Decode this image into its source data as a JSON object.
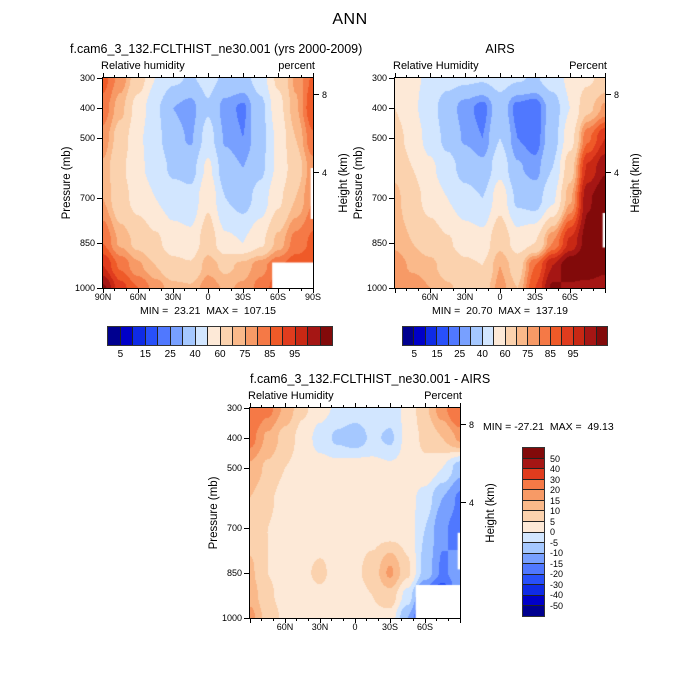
{
  "title": "ANN",
  "palettes": {
    "rh": {
      "levels": [
        5,
        10,
        15,
        20,
        25,
        30,
        40,
        50,
        60,
        70,
        75,
        80,
        85,
        90,
        95,
        100,
        105
      ],
      "colors": [
        "#00008F",
        "#0000C8",
        "#0F2BE6",
        "#2850FA",
        "#5078FF",
        "#78A0FF",
        "#A5C8FF",
        "#D2E6FF",
        "#FDE9D7",
        "#FBD2AE",
        "#FAB98A",
        "#F79A66",
        "#F57946",
        "#EF5A28",
        "#E03C1E",
        "#C82814",
        "#A51614",
        "#820A0A"
      ]
    },
    "diff": {
      "levels": [
        -50,
        -40,
        -30,
        -20,
        -15,
        -10,
        -5,
        0,
        5,
        10,
        15,
        20,
        30,
        40,
        50
      ],
      "colors": [
        "#00008F",
        "#0000C8",
        "#0F2BE6",
        "#2850FA",
        "#5078FF",
        "#78A0FF",
        "#A5C8FF",
        "#D2E6FF",
        "#FDE9D7",
        "#FBD2AE",
        "#FAB98A",
        "#F79A66",
        "#F57946",
        "#E03C1E",
        "#A51614",
        "#820A0A"
      ]
    }
  },
  "colorbars": {
    "rh_labels": [
      "5",
      "15",
      "25",
      "40",
      "60",
      "75",
      "85",
      "95"
    ],
    "diff_labels_top_to_bottom": [
      "50",
      "40",
      "30",
      "20",
      "15",
      "10",
      "5",
      "0",
      "-5",
      "-10",
      "-15",
      "-20",
      "-30",
      "-40",
      "-50"
    ]
  },
  "panels": [
    {
      "title": "f.cam6_3_132.FCLTHIST_ne30.001 (yrs 2000-2009)",
      "field_label": "Relative humidity",
      "units_label": "percent",
      "y_axis_label": "Pressure (mb)",
      "y2_axis_label": "Height (km)",
      "minmax": "MIN =  23.21  MAX =  107.15",
      "x_ticks": [
        {
          "lat": 90,
          "label": "90N"
        },
        {
          "lat": 60,
          "label": "60N"
        },
        {
          "lat": 30,
          "label": "30N"
        },
        {
          "lat": 0,
          "label": "0"
        },
        {
          "lat": -30,
          "label": "30S"
        },
        {
          "lat": -60,
          "label": "60S"
        },
        {
          "lat": -90,
          "label": "90S"
        }
      ],
      "y_ticks": [
        300,
        400,
        500,
        700,
        850,
        1000
      ],
      "y2_ticks": [
        {
          "label": "8",
          "p": 356
        },
        {
          "label": "4",
          "p": 616
        }
      ]
    },
    {
      "title": "AIRS",
      "field_label": "Relative Humidity",
      "units_label": "Percent",
      "y_axis_label": "Pressure (mb)",
      "y2_axis_label": "Height (km)",
      "minmax": "MIN =  20.70  MAX =  137.19",
      "x_ticks": [
        {
          "lat": 60,
          "label": "60N"
        },
        {
          "lat": 30,
          "label": "30N"
        },
        {
          "lat": 0,
          "label": "0"
        },
        {
          "lat": -30,
          "label": "30S"
        },
        {
          "lat": -60,
          "label": "60S"
        }
      ],
      "y_ticks": [
        300,
        400,
        500,
        700,
        850,
        1000
      ],
      "y2_ticks": [
        {
          "label": "8",
          "p": 356
        },
        {
          "label": "4",
          "p": 616
        }
      ]
    },
    {
      "title": "f.cam6_3_132.FCLTHIST_ne30.001 - AIRS",
      "field_label": "Relative Humidity",
      "units_label": "Percent",
      "y_axis_label": "Pressure (mb)",
      "y2_axis_label": "Height (km)",
      "minmax": "MIN = -27.21  MAX =  49.13",
      "x_ticks": [
        {
          "lat": 60,
          "label": "60N"
        },
        {
          "lat": 30,
          "label": "30N"
        },
        {
          "lat": 0,
          "label": "0"
        },
        {
          "lat": -30,
          "label": "30S"
        },
        {
          "lat": -60,
          "label": "60S"
        }
      ],
      "y_ticks": [
        300,
        400,
        500,
        700,
        850,
        1000
      ],
      "y2_ticks": [
        {
          "label": "8",
          "p": 356
        },
        {
          "label": "4",
          "p": 616
        }
      ]
    }
  ],
  "chart_data": [
    {
      "id": "model_rh",
      "type": "heatmap",
      "title": "f.cam6_3_132.FCLTHIST_ne30.001 (yrs 2000-2009)",
      "units": "percent",
      "palette": "rh",
      "contour_levels": [
        5,
        10,
        15,
        20,
        25,
        30,
        40,
        50,
        60,
        70,
        75,
        80,
        85,
        90,
        95,
        100,
        105
      ],
      "x_lat_deg": [
        90,
        75,
        60,
        45,
        30,
        15,
        0,
        -15,
        -30,
        -45,
        -60,
        -75,
        -90
      ],
      "y_pressure_mb": [
        300,
        400,
        500,
        600,
        700,
        850,
        925,
        1000
      ],
      "values": [
        [
          87,
          78,
          65,
          50,
          42,
          39,
          43,
          38,
          36,
          45,
          62,
          76,
          86
        ],
        [
          83,
          72,
          56,
          42,
          30,
          27,
          39,
          27,
          24,
          37,
          56,
          74,
          90
        ],
        [
          78,
          66,
          52,
          43,
          33,
          29,
          44,
          29,
          25,
          36,
          52,
          70,
          84
        ],
        [
          74,
          62,
          52,
          46,
          38,
          36,
          52,
          34,
          30,
          38,
          52,
          66,
          78
        ],
        [
          75,
          64,
          56,
          50,
          45,
          43,
          58,
          40,
          36,
          44,
          58,
          70,
          80
        ],
        [
          85,
          74,
          68,
          62,
          55,
          53,
          66,
          52,
          50,
          58,
          72,
          82,
          86
        ],
        [
          95,
          84,
          76,
          70,
          63,
          61,
          73,
          68,
          72,
          78,
          84,
          88,
          88
        ],
        [
          106,
          92,
          85,
          78,
          72,
          71,
          78,
          74,
          76,
          82,
          88,
          85,
          85
        ]
      ],
      "min": 23.21,
      "max": 107.15,
      "masked": [
        {
          "lat": [
            -55,
            -90
          ],
          "p": [
            915,
            1000
          ]
        },
        {
          "lat": [
            -88,
            -90
          ],
          "p": [
            600,
            770
          ]
        }
      ]
    },
    {
      "id": "airs_rh",
      "type": "heatmap",
      "title": "AIRS",
      "units": "Percent",
      "palette": "rh",
      "contour_levels": [
        5,
        10,
        15,
        20,
        25,
        30,
        40,
        50,
        60,
        70,
        75,
        80,
        85,
        90,
        95,
        100,
        105
      ],
      "x_lat_deg": [
        90,
        75,
        60,
        45,
        30,
        15,
        0,
        -15,
        -30,
        -45,
        -60,
        -75,
        -90
      ],
      "y_pressure_mb": [
        300,
        400,
        500,
        600,
        700,
        850,
        925,
        1000
      ],
      "values": [
        [
          56,
          52,
          48,
          44,
          42,
          41,
          44,
          41,
          39,
          45,
          52,
          58,
          64
        ],
        [
          60,
          52,
          44,
          34,
          27,
          23,
          35,
          23,
          21,
          34,
          50,
          68,
          76
        ],
        [
          64,
          56,
          46,
          37,
          29,
          25,
          40,
          25,
          22,
          35,
          56,
          84,
          95
        ],
        [
          68,
          60,
          52,
          44,
          36,
          32,
          47,
          31,
          27,
          40,
          66,
          96,
          104
        ],
        [
          72,
          64,
          56,
          50,
          44,
          40,
          56,
          38,
          35,
          48,
          74,
          104,
          110
        ],
        [
          74,
          70,
          66,
          61,
          56,
          54,
          68,
          55,
          60,
          80,
          96,
          108,
          112
        ],
        [
          78,
          74,
          72,
          66,
          62,
          60,
          75,
          66,
          85,
          100,
          110,
          112,
          108
        ],
        [
          80,
          78,
          75,
          71,
          67,
          66,
          77,
          70,
          90,
          106,
          104,
          102,
          100
        ]
      ],
      "min": 20.7,
      "max": 137.19,
      "masked": [
        {
          "lat": [
            -88,
            -90
          ],
          "p": [
            750,
            865
          ]
        }
      ]
    },
    {
      "id": "model_minus_airs",
      "type": "heatmap",
      "title": "f.cam6_3_132.FCLTHIST_ne30.001 - AIRS",
      "units": "Percent",
      "palette": "diff",
      "contour_levels": [
        -50,
        -40,
        -30,
        -20,
        -15,
        -10,
        -5,
        0,
        5,
        10,
        15,
        20,
        30,
        40,
        50
      ],
      "x_lat_deg": [
        90,
        75,
        60,
        45,
        30,
        15,
        0,
        -15,
        -30,
        -45,
        -60,
        -75,
        -90
      ],
      "y_pressure_mb": [
        300,
        400,
        500,
        600,
        700,
        850,
        925,
        1000
      ],
      "values": [
        [
          28,
          22,
          14,
          6,
          2,
          -1,
          -2,
          -2,
          -2,
          1,
          9,
          18,
          30
        ],
        [
          22,
          14,
          8,
          3,
          -2,
          -6,
          -8,
          -4,
          -6,
          2,
          6,
          10,
          16
        ],
        [
          14,
          9,
          5,
          3,
          2,
          2,
          3,
          2,
          1,
          2,
          4,
          0,
          -8
        ],
        [
          10,
          6,
          3,
          2,
          2,
          3,
          4,
          3,
          2,
          2,
          -2,
          -10,
          -16
        ],
        [
          8,
          5,
          3,
          2,
          2,
          3,
          3,
          3,
          2,
          3,
          -5,
          -14,
          -18
        ],
        [
          11,
          5,
          3,
          4,
          6,
          3,
          4,
          7,
          16,
          6,
          -7,
          -16,
          -12
        ],
        [
          13,
          6,
          3,
          3,
          4,
          3,
          3,
          5,
          8,
          -2,
          -20,
          -26,
          -10
        ],
        [
          17,
          8,
          4,
          3,
          3,
          4,
          5,
          4,
          3,
          -10,
          -26,
          -20,
          -10
        ]
      ],
      "min": -27.21,
      "max": 49.13,
      "masked": [
        {
          "lat": [
            -52,
            -90
          ],
          "p": [
            890,
            1000
          ]
        },
        {
          "lat": [
            -88,
            -90
          ],
          "p": [
            716,
            838
          ]
        }
      ]
    }
  ]
}
